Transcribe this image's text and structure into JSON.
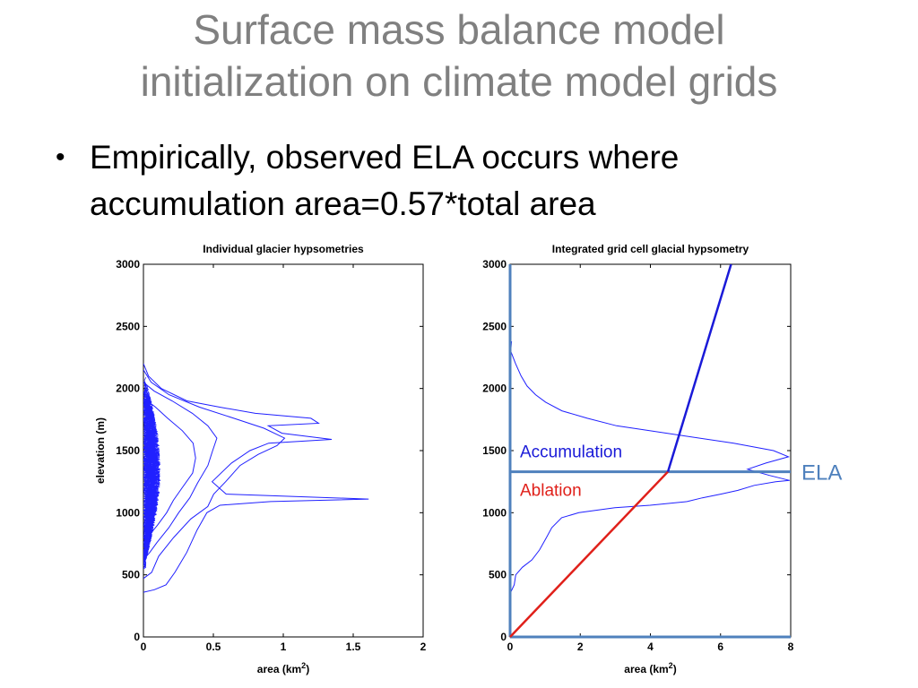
{
  "slide": {
    "title_line1": "Surface mass balance model",
    "title_line2": "initialization on climate model grids",
    "bullet": "Empirically, observed ELA occurs where accumulation area=0.57*total area"
  },
  "chart_data": [
    {
      "type": "line",
      "title": "Individual glacier hypsometries",
      "xlabel": "area (km²)",
      "ylabel": "elevation (m)",
      "xlim": [
        0,
        2
      ],
      "ylim": [
        0,
        3000
      ],
      "xticks": [
        "0",
        "0.5",
        "1",
        "1.5",
        "2"
      ],
      "yticks": [
        "0",
        "500",
        "1000",
        "1500",
        "2000",
        "2500",
        "3000"
      ],
      "line_color": "#2020ff",
      "series": [
        {
          "points": [
            [
              0.0,
              360
            ],
            [
              0.08,
              380
            ],
            [
              0.15,
              420
            ],
            [
              0.22,
              520
            ],
            [
              0.3,
              680
            ],
            [
              0.38,
              860
            ],
            [
              0.45,
              1000
            ],
            [
              0.55,
              1060
            ],
            [
              0.9,
              1090
            ],
            [
              1.6,
              1110
            ],
            [
              0.6,
              1150
            ],
            [
              0.5,
              1250
            ],
            [
              0.62,
              1400
            ],
            [
              0.75,
              1500
            ],
            [
              0.9,
              1560
            ],
            [
              1.35,
              1590
            ],
            [
              1.0,
              1640
            ],
            [
              0.9,
              1700
            ],
            [
              1.25,
              1720
            ],
            [
              1.2,
              1760
            ],
            [
              0.8,
              1800
            ],
            [
              0.55,
              1850
            ],
            [
              0.3,
              1900
            ],
            [
              0.12,
              2000
            ],
            [
              0.03,
              2100
            ],
            [
              0.0,
              2200
            ]
          ]
        },
        {
          "points": [
            [
              0.0,
              470
            ],
            [
              0.06,
              520
            ],
            [
              0.12,
              650
            ],
            [
              0.22,
              800
            ],
            [
              0.35,
              950
            ],
            [
              0.45,
              1050
            ],
            [
              0.5,
              1150
            ],
            [
              0.6,
              1250
            ],
            [
              0.7,
              1380
            ],
            [
              0.82,
              1470
            ],
            [
              0.95,
              1540
            ],
            [
              1.0,
              1600
            ],
            [
              0.85,
              1680
            ],
            [
              0.65,
              1760
            ],
            [
              0.4,
              1850
            ],
            [
              0.18,
              1950
            ],
            [
              0.05,
              2050
            ],
            [
              0.0,
              2150
            ]
          ]
        },
        {
          "points": [
            [
              0.0,
              620
            ],
            [
              0.05,
              680
            ],
            [
              0.1,
              760
            ],
            [
              0.17,
              880
            ],
            [
              0.25,
              1000
            ],
            [
              0.32,
              1120
            ],
            [
              0.38,
              1240
            ],
            [
              0.45,
              1380
            ],
            [
              0.5,
              1500
            ],
            [
              0.52,
              1600
            ],
            [
              0.45,
              1700
            ],
            [
              0.35,
              1800
            ],
            [
              0.2,
              1900
            ],
            [
              0.08,
              1980
            ],
            [
              0.0,
              2050
            ]
          ]
        },
        {
          "points": [
            [
              0.0,
              760
            ],
            [
              0.05,
              820
            ],
            [
              0.1,
              900
            ],
            [
              0.16,
              1000
            ],
            [
              0.22,
              1100
            ],
            [
              0.28,
              1200
            ],
            [
              0.34,
              1320
            ],
            [
              0.38,
              1440
            ],
            [
              0.35,
              1560
            ],
            [
              0.28,
              1660
            ],
            [
              0.18,
              1760
            ],
            [
              0.08,
              1850
            ],
            [
              0.0,
              1920
            ]
          ]
        }
      ],
      "dense_band": {
        "xmax": 0.12,
        "ymin": 540,
        "ymax": 2150
      }
    },
    {
      "type": "line",
      "title": "Integrated grid cell glacial hypsometry",
      "xlabel": "area (km²)",
      "ylabel": "",
      "xlim": [
        0,
        8
      ],
      "ylim": [
        0,
        3000
      ],
      "xticks": [
        "0",
        "2",
        "4",
        "6",
        "8"
      ],
      "yticks": [
        "0",
        "500",
        "1000",
        "1500",
        "2000",
        "2500",
        "3000"
      ],
      "line_color": "#2020ff",
      "series": [
        {
          "points": [
            [
              0.0,
              350
            ],
            [
              0.08,
              420
            ],
            [
              0.2,
              500
            ],
            [
              0.35,
              560
            ],
            [
              0.6,
              620
            ],
            [
              0.8,
              700
            ],
            [
              1.0,
              800
            ],
            [
              1.2,
              880
            ],
            [
              1.5,
              960
            ],
            [
              2.0,
              1000
            ],
            [
              3.0,
              1040
            ],
            [
              4.0,
              1060
            ],
            [
              5.0,
              1090
            ],
            [
              5.5,
              1120
            ],
            [
              6.0,
              1150
            ],
            [
              6.5,
              1180
            ],
            [
              7.0,
              1220
            ],
            [
              7.6,
              1250
            ],
            [
              8.0,
              1260
            ],
            [
              7.4,
              1300
            ],
            [
              6.8,
              1350
            ],
            [
              7.3,
              1400
            ],
            [
              7.9,
              1450
            ],
            [
              7.5,
              1500
            ],
            [
              6.4,
              1560
            ],
            [
              4.0,
              1660
            ],
            [
              3.0,
              1700
            ],
            [
              2.2,
              1760
            ],
            [
              1.5,
              1820
            ],
            [
              1.0,
              1890
            ],
            [
              0.7,
              1950
            ],
            [
              0.5,
              2020
            ],
            [
              0.3,
              2100
            ],
            [
              0.12,
              2200
            ],
            [
              0.05,
              2300
            ],
            [
              0.0,
              2380
            ]
          ]
        }
      ],
      "overlays": {
        "ela_elevation": 1330,
        "ela_label": "ELA",
        "accumulation_label": "Accumulation",
        "ablation_label": "Ablation",
        "ablation_line": [
          [
            0,
            0
          ],
          [
            4.5,
            1330
          ]
        ],
        "accumulation_line": [
          [
            4.5,
            1330
          ],
          [
            6.3,
            3000
          ]
        ],
        "ela_color": "#4f81bd",
        "ablation_color": "#e0201a",
        "accumulation_color": "#1a1ad8"
      }
    }
  ]
}
